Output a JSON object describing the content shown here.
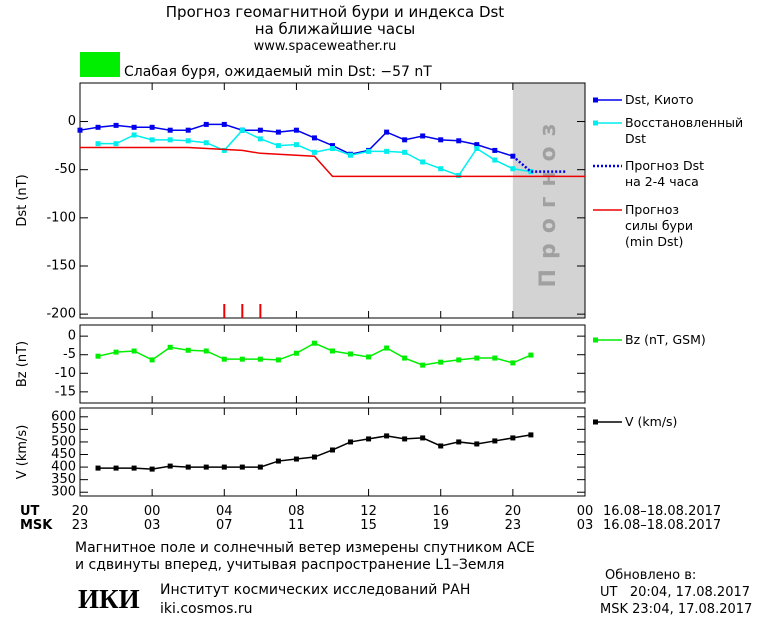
{
  "header": {
    "title": "Прогноз геомагнитной бури и индекса Dst",
    "subtitle": "на ближайшие часы",
    "url": "www.spaceweather.ru",
    "status": {
      "color": "#00ee00",
      "text": "Слабая буря, ожидаемый min Dst: −57 nT"
    }
  },
  "time_axis": {
    "xlim": [
      0,
      28
    ],
    "ut_label": "UT",
    "msk_label": "MSK",
    "date_range": "16.08–18.08.2017",
    "ut_ticks": [
      {
        "value": 0,
        "label": "20"
      },
      {
        "value": 4,
        "label": "00"
      },
      {
        "value": 8,
        "label": "04"
      },
      {
        "value": 12,
        "label": "08"
      },
      {
        "value": 16,
        "label": "12"
      },
      {
        "value": 20,
        "label": "16"
      },
      {
        "value": 24,
        "label": "20"
      },
      {
        "value": 28,
        "label": "00"
      }
    ],
    "msk_ticks": [
      {
        "value": 0,
        "label": "23"
      },
      {
        "value": 4,
        "label": "03"
      },
      {
        "value": 8,
        "label": "07"
      },
      {
        "value": 12,
        "label": "11"
      },
      {
        "value": 16,
        "label": "15"
      },
      {
        "value": 20,
        "label": "19"
      },
      {
        "value": 24,
        "label": "23"
      },
      {
        "value": 28,
        "label": "03"
      }
    ]
  },
  "chart_data": [
    {
      "type": "line",
      "ylabel": "Dst (nT)",
      "ylim": [
        -204,
        40
      ],
      "yticks": [
        0,
        -50,
        -100,
        -150,
        -200
      ],
      "forecast_region": {
        "xlim": [
          24,
          28
        ],
        "label": "Прогноз",
        "color": "#d3d3d3"
      },
      "storm_hours": [
        8,
        9,
        10
      ],
      "storm_color": "#ee0000",
      "series": [
        {
          "name": "Dst, Киото",
          "color": "#0000ee",
          "marker": "square",
          "linestyle": "solid",
          "x": [
            0,
            1,
            2,
            3,
            4,
            5,
            6,
            7,
            8,
            9,
            10,
            11,
            12,
            13,
            14,
            15,
            16,
            17,
            18,
            19,
            20,
            21,
            22,
            23,
            24
          ],
          "values": [
            -9,
            -6,
            -4,
            -6,
            -6,
            -9,
            -9,
            -3,
            -3,
            -9,
            -9,
            -11,
            -9,
            -17,
            -25,
            -34,
            -30,
            -11,
            -19,
            -15,
            -19,
            -20,
            -24,
            -30,
            -36
          ]
        },
        {
          "name": "Восстановленный\nDst",
          "color": "#00eeee",
          "marker": "square",
          "linestyle": "solid",
          "x": [
            1,
            2,
            3,
            4,
            5,
            6,
            7,
            8,
            9,
            10,
            11,
            12,
            13,
            14,
            15,
            16,
            17,
            18,
            19,
            20,
            21,
            22,
            23,
            24,
            25
          ],
          "values": [
            -23,
            -23,
            -14,
            -19,
            -19,
            -20,
            -22,
            -30,
            -9,
            -18,
            -25,
            -24,
            -32,
            -28,
            -35,
            -31,
            -31,
            -32,
            -42,
            -49,
            -56,
            -28,
            -40,
            -49,
            -52
          ]
        },
        {
          "name": "Прогноз Dst\nна 2-4 часа",
          "color": "#0000ee",
          "marker": null,
          "linestyle": "dotted",
          "x": [
            24,
            25,
            26,
            27
          ],
          "values": [
            -36,
            -52,
            -52,
            -52
          ]
        },
        {
          "name": "Прогноз\nсилы бури\n(min Dst)",
          "color": "#ee0000",
          "marker": null,
          "linestyle": "solid",
          "x": [
            0,
            6,
            9,
            10,
            13,
            14,
            28
          ],
          "values": [
            -27,
            -27,
            -30,
            -33,
            -36,
            -57,
            -57
          ]
        }
      ]
    },
    {
      "type": "line",
      "ylabel": "Bz (nT)",
      "ylim": [
        -18,
        3
      ],
      "yticks": [
        0,
        -5,
        -10,
        -15
      ],
      "series": [
        {
          "name": "Bz (nT, GSM)",
          "color": "#00ee00",
          "marker": "square",
          "linestyle": "solid",
          "x": [
            1,
            2,
            3,
            4,
            5,
            6,
            7,
            8,
            9,
            10,
            11,
            12,
            13,
            14,
            15,
            16,
            17,
            18,
            19,
            20,
            21,
            22,
            23,
            24,
            25
          ],
          "values": [
            -5.4,
            -4.3,
            -4.0,
            -6.4,
            -3.0,
            -3.8,
            -4.0,
            -6.2,
            -6.2,
            -6.2,
            -6.4,
            -4.6,
            -1.9,
            -4.0,
            -4.8,
            -5.6,
            -3.2,
            -5.9,
            -7.8,
            -7.0,
            -6.4,
            -5.9,
            -5.9,
            -7.2,
            -5.1
          ]
        }
      ]
    },
    {
      "type": "line",
      "ylabel": "V (km/s)",
      "ylim": [
        285,
        635
      ],
      "yticks": [
        300,
        350,
        400,
        450,
        500,
        550,
        600
      ],
      "series": [
        {
          "name": "V (km/s)",
          "color": "#000000",
          "marker": "square",
          "linestyle": "solid",
          "x": [
            1,
            2,
            3,
            4,
            5,
            6,
            7,
            8,
            9,
            10,
            11,
            12,
            13,
            14,
            15,
            16,
            17,
            18,
            19,
            20,
            21,
            22,
            23,
            24,
            25
          ],
          "values": [
            396,
            396,
            396,
            392,
            404,
            400,
            400,
            400,
            400,
            400,
            424,
            432,
            440,
            468,
            500,
            512,
            524,
            512,
            516,
            484,
            500,
            492,
            504,
            516,
            528
          ]
        }
      ]
    }
  ],
  "footer": {
    "note_line1": "Магнитное поле и солнечный ветер измерены спутником ACE",
    "note_line2": "и сдвинуты вперед, учитывая распространение L1–Земля",
    "logo": "ИКИ",
    "institute": "Институт космических исследований РАН",
    "institute_url": "iki.cosmos.ru",
    "updated_label": "Обновлено в:",
    "updated_ut": "UT   20:04, 17.08.2017",
    "updated_msk": "MSK 23:04, 17.08.2017"
  }
}
